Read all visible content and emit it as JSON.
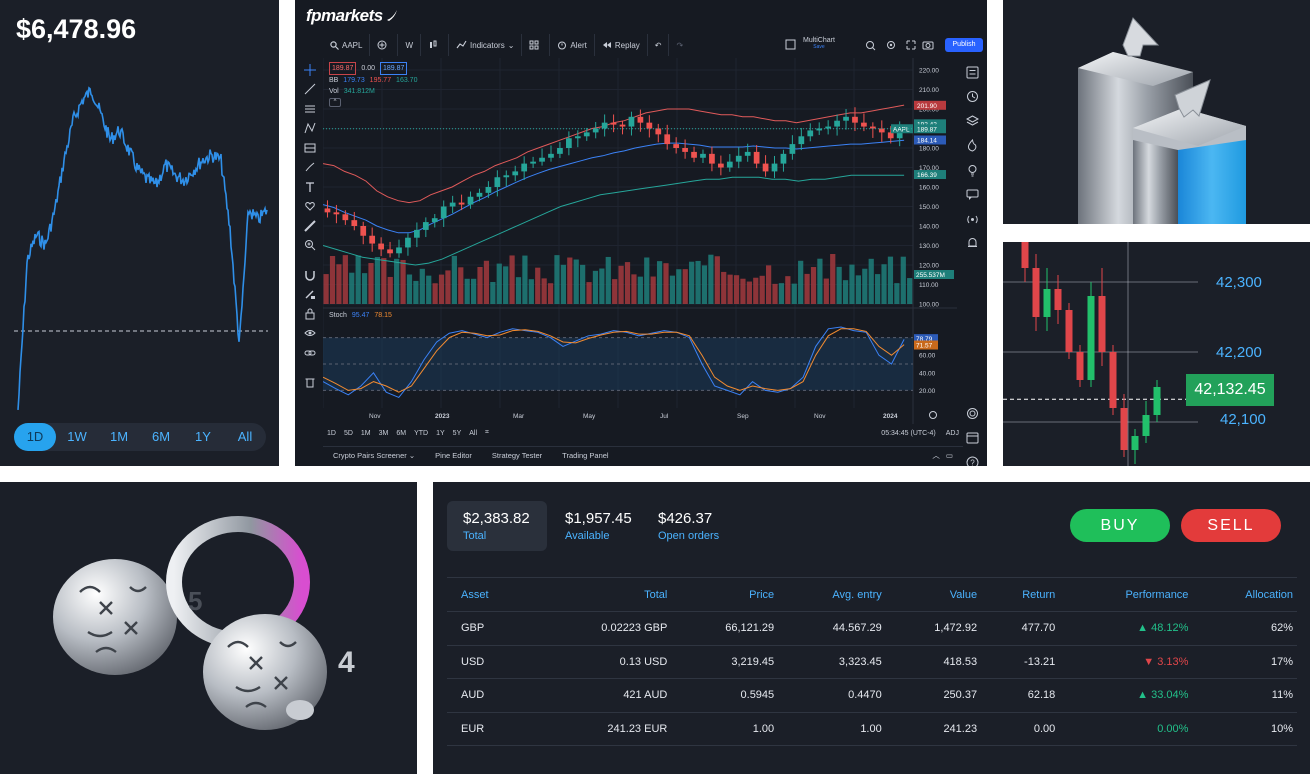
{
  "price_widget": {
    "price": "$6,478.96",
    "ranges": [
      "1D",
      "1W",
      "1M",
      "6M",
      "1Y",
      "All"
    ],
    "active_range": "1D",
    "line_color": "#2f8fe8"
  },
  "terminal": {
    "brand": "fpmarkets",
    "toolbar": {
      "symbol": "AAPL",
      "interval": "W",
      "indicators": "Indicators",
      "alert": "Alert",
      "replay": "Replay",
      "multichart": "MultiChart",
      "multichart_sub": "Save",
      "publish": "Publish"
    },
    "legend": {
      "price_box": "189.87",
      "change": "0.00",
      "price_box2": "189.87",
      "bb_label": "BB",
      "bb_values": [
        "179.73",
        "195.77",
        "163.70"
      ],
      "vol_label": "Vol",
      "vol_value": "341.812M"
    },
    "price_axis": [
      "220.00",
      "210.00",
      "200.00",
      "190.00",
      "180.00",
      "170.00",
      "160.00",
      "150.00",
      "140.00",
      "130.00",
      "120.00",
      "110.00",
      "100.00"
    ],
    "axis_tags": {
      "bb_upper": "201.90",
      "last_price": "192.42",
      "symbol": "AAPL",
      "symbol_price": "189.87",
      "bb_mid": "184.14",
      "bb_lower": "166.39",
      "vol": "255.537M"
    },
    "stoch": {
      "label": "Stoch",
      "k": "95.47",
      "d": "78.15",
      "axis": [
        "80.00",
        "60.00",
        "40.00",
        "20.00"
      ],
      "tags": [
        "78.79",
        "71.57"
      ]
    },
    "time_axis": [
      "Nov",
      "2023",
      "Mar",
      "May",
      "Jul",
      "Sep",
      "Nov",
      "2024"
    ],
    "ranges": [
      "1D",
      "5D",
      "1M",
      "3M",
      "6M",
      "YTD",
      "1Y",
      "5Y",
      "All"
    ],
    "clock": "05:34:45 (UTC-4)",
    "adj": "ADJ",
    "tabs": [
      "Crypto Pairs Screener",
      "Pine Editor",
      "Strategy Tester",
      "Trading Panel"
    ],
    "colors": {
      "up": "#26a69a",
      "down": "#ef5350",
      "bb_upper": "#e05a5a",
      "bb_mid": "#3b82f6",
      "bb_lower": "#26a69a"
    },
    "chart_data": {
      "type": "candlestick",
      "title": "AAPL",
      "interval": "W",
      "ylim": [
        100,
        220
      ],
      "weekly_close_sample": [
        147,
        146,
        143,
        140,
        135,
        131,
        128,
        126,
        129,
        134,
        138,
        142,
        144,
        150,
        152,
        151,
        155,
        157,
        160,
        165,
        166,
        168,
        172,
        173,
        175,
        177,
        180,
        185,
        186,
        188,
        190,
        193,
        192,
        191,
        196,
        193,
        190,
        187,
        182,
        180,
        178,
        175,
        177,
        172,
        170,
        173,
        176,
        178,
        172,
        168,
        172,
        177,
        182,
        186,
        189,
        190,
        191,
        194,
        196,
        193,
        191,
        190,
        188,
        185,
        189
      ],
      "bb_upper": [
        172,
        171,
        168,
        166,
        163,
        158,
        155,
        153,
        152,
        153,
        156,
        158,
        160,
        163,
        166,
        168,
        171,
        173,
        175,
        178,
        180,
        182,
        184,
        186,
        188,
        190,
        191,
        193,
        194,
        196,
        198,
        199,
        200,
        200,
        200,
        199,
        198,
        197,
        197,
        196,
        196,
        195,
        194,
        194,
        193,
        194,
        195,
        196,
        197,
        198,
        198,
        199,
        200,
        201,
        202
      ],
      "bb_lower": [
        130,
        128,
        126,
        124,
        123,
        122,
        121,
        120,
        121,
        123,
        126,
        129,
        132,
        135,
        138,
        141,
        144,
        147,
        150,
        152,
        154,
        156,
        157,
        158,
        159,
        160,
        161,
        162,
        163,
        164,
        164,
        165,
        165,
        165,
        164,
        164,
        163,
        164,
        164,
        165,
        166,
        166,
        166,
        166,
        166
      ],
      "stoch_k": [
        30,
        22,
        15,
        25,
        40,
        18,
        12,
        30,
        55,
        75,
        85,
        88,
        84,
        80,
        86,
        90,
        88,
        86,
        80,
        70,
        76,
        82,
        84,
        88,
        86,
        82,
        85,
        88,
        86,
        80,
        50,
        25,
        20,
        15,
        30,
        20,
        18,
        22,
        35,
        70,
        90,
        92,
        88,
        86,
        60,
        50,
        78
      ],
      "stoch_d": [
        35,
        28,
        20,
        22,
        30,
        25,
        18,
        25,
        45,
        65,
        80,
        86,
        85,
        82,
        83,
        88,
        89,
        87,
        82,
        75,
        74,
        79,
        83,
        86,
        87,
        84,
        84,
        86,
        86,
        82,
        60,
        35,
        25,
        20,
        25,
        22,
        20,
        22,
        30,
        60,
        82,
        90,
        90,
        87,
        70,
        60,
        72
      ]
    }
  },
  "candle_panel": {
    "price_levels": [
      "42,300",
      "42,200",
      "42,100"
    ],
    "current_price": "42,132.45",
    "chart_data": {
      "type": "candlestick",
      "ylim": [
        42050,
        42400
      ],
      "current_price": 42132.45,
      "candles": [
        {
          "o": 42380,
          "c": 42320,
          "h": 42400,
          "l": 42300
        },
        {
          "o": 42320,
          "c": 42250,
          "h": 42340,
          "l": 42230
        },
        {
          "o": 42250,
          "c": 42290,
          "h": 42320,
          "l": 42230
        },
        {
          "o": 42290,
          "c": 42260,
          "h": 42310,
          "l": 42240
        },
        {
          "o": 42260,
          "c": 42200,
          "h": 42270,
          "l": 42190
        },
        {
          "o": 42200,
          "c": 42160,
          "h": 42210,
          "l": 42150
        },
        {
          "o": 42160,
          "c": 42280,
          "h": 42300,
          "l": 42150
        },
        {
          "o": 42280,
          "c": 42200,
          "h": 42320,
          "l": 42180
        },
        {
          "o": 42200,
          "c": 42120,
          "h": 42210,
          "l": 42110
        },
        {
          "o": 42120,
          "c": 42060,
          "h": 42140,
          "l": 42050
        },
        {
          "o": 42060,
          "c": 42080,
          "h": 42090,
          "l": 42040
        },
        {
          "o": 42080,
          "c": 42110,
          "h": 42130,
          "l": 42070
        },
        {
          "o": 42110,
          "c": 42150,
          "h": 42160,
          "l": 42100
        }
      ]
    }
  },
  "portfolio": {
    "stats": [
      {
        "value": "$2,383.82",
        "label": "Total"
      },
      {
        "value": "$1,957.45",
        "label": "Available"
      },
      {
        "value": "$426.37",
        "label": "Open orders"
      }
    ],
    "buy_label": "BUY",
    "sell_label": "SELL",
    "columns": [
      "Asset",
      "Total",
      "Price",
      "Avg. entry",
      "Value",
      "Return",
      "Performance",
      "Allocation"
    ],
    "rows": [
      {
        "asset": "GBP",
        "total": "0.02223 GBP",
        "price": "66,121.29",
        "avg_entry": "44.567.29",
        "value": "1,472.92",
        "return": "477.70",
        "performance": "48.12%",
        "direction": "up",
        "allocation": "62%"
      },
      {
        "asset": "USD",
        "total": "0.13 USD",
        "price": "3,219.45",
        "avg_entry": "3,323.45",
        "value": "418.53",
        "return": "-13.21",
        "performance": "3.13%",
        "direction": "down",
        "allocation": "17%"
      },
      {
        "asset": "AUD",
        "total": "421 AUD",
        "price": "0.5945",
        "avg_entry": "0.4470",
        "value": "250.37",
        "return": "62.18",
        "performance": "33.04%",
        "direction": "up",
        "allocation": "11%"
      },
      {
        "asset": "EUR",
        "total": "241.23 EUR",
        "price": "1.00",
        "avg_entry": "1.00",
        "value": "241.23",
        "return": "0.00",
        "performance": "0.00%",
        "direction": "flat",
        "allocation": "10%"
      }
    ]
  }
}
